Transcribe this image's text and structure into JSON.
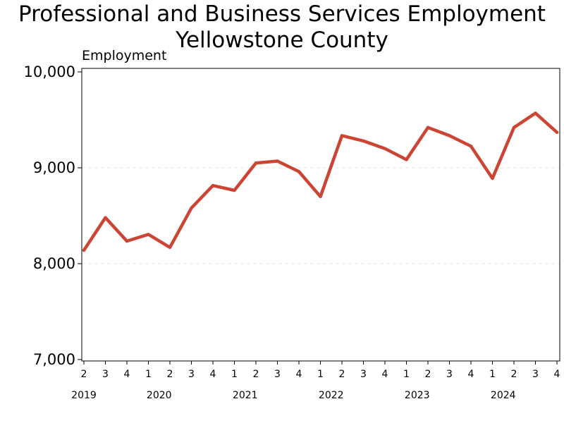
{
  "chart_data": {
    "type": "line",
    "title": "Professional and Business Services Employment",
    "subtitle": "Yellowstone County",
    "ylabel": "Employment",
    "xlabel": "",
    "ylim": [
      7000,
      10000
    ],
    "yticks": [
      7000,
      8000,
      9000,
      10000
    ],
    "ytick_labels": [
      "7,000",
      "8,000",
      "9,000",
      "10,000"
    ],
    "grid": "horizontal dashed",
    "line_color": "#cc4433",
    "x": [
      {
        "quarter": "2",
        "year": "2019"
      },
      {
        "quarter": "3",
        "year": "2019"
      },
      {
        "quarter": "4",
        "year": "2019"
      },
      {
        "quarter": "1",
        "year": "2020"
      },
      {
        "quarter": "2",
        "year": "2020"
      },
      {
        "quarter": "3",
        "year": "2020"
      },
      {
        "quarter": "4",
        "year": "2020"
      },
      {
        "quarter": "1",
        "year": "2021"
      },
      {
        "quarter": "2",
        "year": "2021"
      },
      {
        "quarter": "3",
        "year": "2021"
      },
      {
        "quarter": "4",
        "year": "2021"
      },
      {
        "quarter": "1",
        "year": "2022"
      },
      {
        "quarter": "2",
        "year": "2022"
      },
      {
        "quarter": "3",
        "year": "2022"
      },
      {
        "quarter": "4",
        "year": "2022"
      },
      {
        "quarter": "1",
        "year": "2023"
      },
      {
        "quarter": "2",
        "year": "2023"
      },
      {
        "quarter": "3",
        "year": "2023"
      },
      {
        "quarter": "4",
        "year": "2023"
      },
      {
        "quarter": "1",
        "year": "2024"
      },
      {
        "quarter": "2",
        "year": "2024"
      },
      {
        "quarter": "3",
        "year": "2024"
      },
      {
        "quarter": "4",
        "year": "2024"
      }
    ],
    "year_labels": [
      "2019",
      "2020",
      "2021",
      "2022",
      "2023",
      "2024"
    ],
    "series": [
      {
        "values": [
          8140,
          8480,
          8235,
          8305,
          8170,
          8580,
          8815,
          8765,
          9050,
          9070,
          8960,
          8700,
          9335,
          9280,
          9200,
          9085,
          9420,
          9335,
          9225,
          8890,
          9420,
          9570,
          9370
        ]
      }
    ]
  }
}
